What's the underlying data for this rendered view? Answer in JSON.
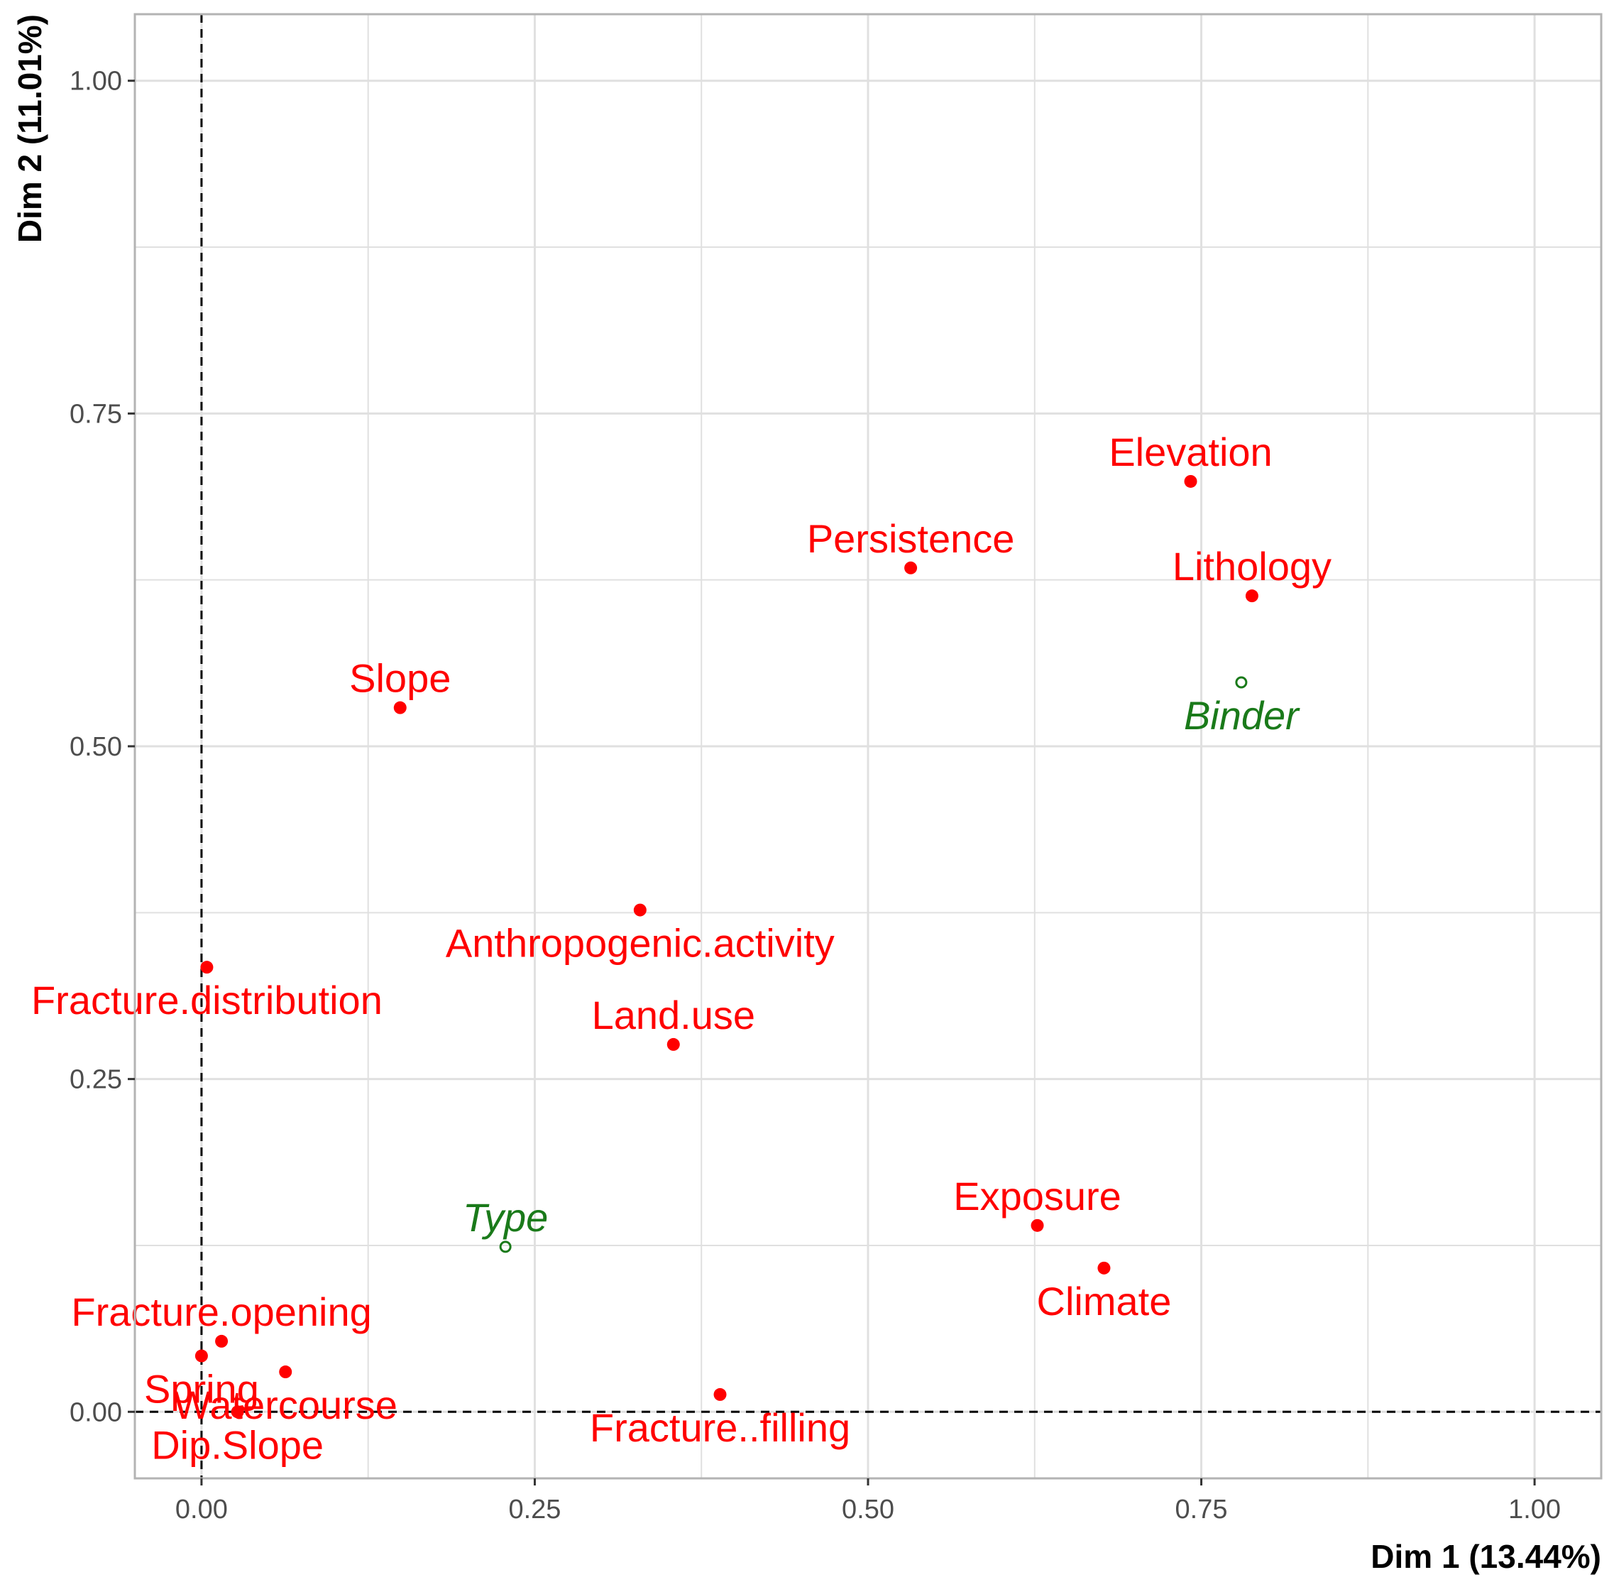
{
  "chart_data": {
    "type": "scatter",
    "title": "",
    "xlabel": "Dim 1 (13.44%)",
    "ylabel": "Dim 2 (11.01%)",
    "xlim": [
      -0.05,
      1.05
    ],
    "ylim": [
      -0.05,
      1.05
    ],
    "x_ticks": [
      0.0,
      0.25,
      0.5,
      0.75,
      1.0
    ],
    "y_ticks": [
      0.0,
      0.25,
      0.5,
      0.75,
      1.0
    ],
    "x_tick_labels": [
      "0.00",
      "0.25",
      "0.50",
      "0.75",
      "1.00"
    ],
    "y_tick_labels": [
      "0.00",
      "0.25",
      "0.50",
      "0.75",
      "1.00"
    ],
    "grid": true,
    "reference_lines": {
      "x": 0,
      "y": 0,
      "style": "dashed"
    },
    "colors": {
      "active": "#ff0000",
      "supplementary": "#1a7a1a",
      "grid": "#e0e0e0",
      "panel_border": "#b3b3b3"
    },
    "series": [
      {
        "role": "active",
        "points": [
          {
            "label": "Elevation",
            "x": 0.742,
            "y": 0.699,
            "label_pos": "above"
          },
          {
            "label": "Persistence",
            "x": 0.532,
            "y": 0.634,
            "label_pos": "above"
          },
          {
            "label": "Lithology",
            "x": 0.788,
            "y": 0.613,
            "label_pos": "above"
          },
          {
            "label": "Slope",
            "x": 0.149,
            "y": 0.529,
            "label_pos": "above"
          },
          {
            "label": "Anthropogenic.activity",
            "x": 0.329,
            "y": 0.377,
            "label_pos": "below"
          },
          {
            "label": "Fracture.distribution",
            "x": 0.004,
            "y": 0.334,
            "label_pos": "below"
          },
          {
            "label": "Land.use",
            "x": 0.354,
            "y": 0.276,
            "label_pos": "above"
          },
          {
            "label": "Exposure",
            "x": 0.627,
            "y": 0.14,
            "label_pos": "above"
          },
          {
            "label": "Climate",
            "x": 0.677,
            "y": 0.108,
            "label_pos": "below"
          },
          {
            "label": "Fracture.opening",
            "x": 0.015,
            "y": 0.053,
            "label_pos": "above"
          },
          {
            "label": "Spring",
            "x": 0.0,
            "y": 0.042,
            "label_pos": "below"
          },
          {
            "label": "Watercourse",
            "x": 0.063,
            "y": 0.03,
            "label_pos": "below"
          },
          {
            "label": "Fracture..filling",
            "x": 0.389,
            "y": 0.013,
            "label_pos": "below"
          },
          {
            "label": "Dip.Slope",
            "x": 0.027,
            "y": 0.0,
            "label_pos": "below"
          }
        ]
      },
      {
        "role": "supplementary",
        "points": [
          {
            "label": "Binder",
            "x": 0.78,
            "y": 0.548,
            "label_pos": "below"
          },
          {
            "label": "Type",
            "x": 0.228,
            "y": 0.124,
            "label_pos": "above"
          }
        ]
      }
    ]
  }
}
